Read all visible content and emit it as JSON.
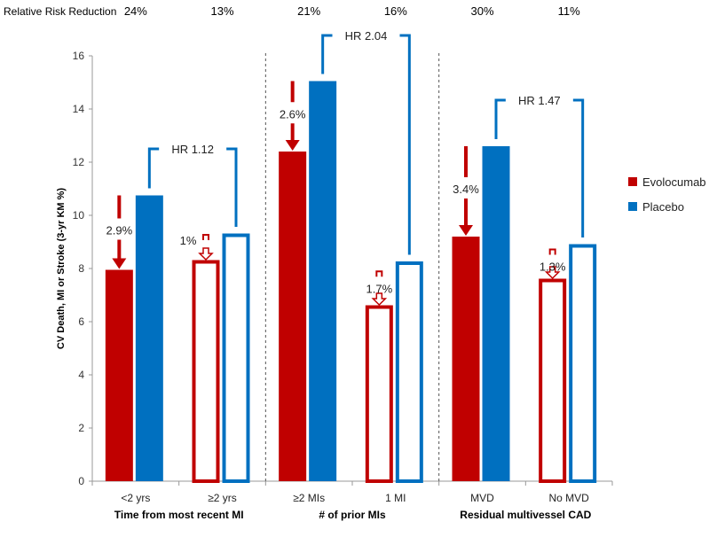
{
  "chart_data": {
    "type": "bar",
    "title": "",
    "ylabel": "CV Death, MI or Stroke (3-yr KM %)",
    "ylim": [
      0,
      16
    ],
    "yticks": [
      0,
      2,
      4,
      6,
      8,
      10,
      12,
      14,
      16
    ],
    "grid": false,
    "legend_position": "right",
    "rrr_label": "Relative Risk Reduction",
    "categories": [
      "<2 yrs",
      "≥2 yrs",
      "≥2 MIs",
      "1 MI",
      "MVD",
      "No MVD"
    ],
    "groups": [
      {
        "label": "Time from most recent MI",
        "categories": [
          0,
          1
        ]
      },
      {
        "label": "# of prior MIs",
        "categories": [
          2,
          3
        ]
      },
      {
        "label": "Residual multivessel CAD",
        "categories": [
          4,
          5
        ]
      }
    ],
    "series": [
      {
        "name": "Evolocumab",
        "color": "#C00000",
        "values": [
          7.95,
          8.3,
          12.4,
          6.6,
          9.2,
          7.6
        ]
      },
      {
        "name": "Placebo",
        "color": "#0070C0",
        "values": [
          10.75,
          9.3,
          15.05,
          8.25,
          12.6,
          8.9
        ]
      }
    ],
    "hollow_categories": [
      1,
      3,
      5
    ],
    "rrr": [
      "24%",
      "13%",
      "21%",
      "16%",
      "30%",
      "11%"
    ],
    "arr": [
      "2.9%",
      "1%",
      "2.6%",
      "1.7%",
      "3.4%",
      "1.3%"
    ],
    "hazard_ratios": [
      "HR 1.12",
      "HR 2.04",
      "HR 1.47"
    ]
  }
}
